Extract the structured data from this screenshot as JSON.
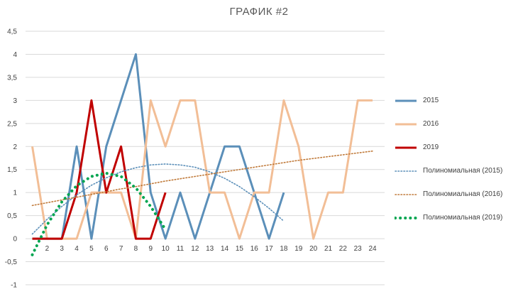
{
  "chart_data": {
    "type": "line",
    "title": "ГРАФИК #2",
    "xlabel": "",
    "ylabel": "",
    "ylim": [
      -1,
      4.5
    ],
    "ytick_step": 0.5,
    "ytick_labels": [
      "-1",
      "-0,5",
      "0",
      "0,5",
      "1",
      "1,5",
      "2",
      "2,5",
      "3",
      "3,5",
      "4",
      "4,5"
    ],
    "categories": [
      "1",
      "2",
      "3",
      "4",
      "5",
      "6",
      "7",
      "8",
      "9",
      "10",
      "11",
      "12",
      "13",
      "14",
      "15",
      "16",
      "17",
      "18",
      "19",
      "20",
      "21",
      "22",
      "23",
      "24"
    ],
    "xtick_labels": [
      "2",
      "3",
      "4",
      "5",
      "6",
      "7",
      "8",
      "9",
      "10",
      "11",
      "12",
      "13",
      "14",
      "15",
      "16",
      "17",
      "18",
      "19",
      "20",
      "21",
      "22",
      "23",
      "24"
    ],
    "grid": true,
    "legend_position": "right",
    "series": [
      {
        "name": "2015",
        "color": "#5b8fb9",
        "style": "solid",
        "x": [
          1,
          2,
          3,
          4,
          5,
          6,
          7,
          8,
          9,
          10,
          11,
          12,
          13,
          14,
          15,
          16,
          17,
          18
        ],
        "values": [
          0,
          0,
          0,
          2,
          0,
          2,
          3,
          4,
          1,
          0,
          1,
          0,
          1,
          2,
          2,
          1,
          0,
          1
        ]
      },
      {
        "name": "2016",
        "color": "#f2be96",
        "style": "solid",
        "x": [
          1,
          2,
          3,
          4,
          5,
          6,
          7,
          8,
          9,
          10,
          11,
          12,
          13,
          14,
          15,
          16,
          17,
          18,
          19,
          20,
          21,
          22,
          23,
          24
        ],
        "values": [
          2,
          0,
          0,
          0,
          1,
          1,
          1,
          0,
          3,
          2,
          3,
          3,
          1,
          1,
          0,
          1,
          1,
          3,
          2,
          0,
          1,
          1,
          3,
          3
        ]
      },
      {
        "name": "2019",
        "color": "#c00000",
        "style": "solid",
        "x": [
          1,
          2,
          3,
          4,
          5,
          6,
          7,
          8,
          9,
          10
        ],
        "values": [
          0,
          0,
          0,
          1,
          3,
          1,
          2,
          0,
          0,
          1
        ]
      },
      {
        "name": "Полиномиальная  (2015)",
        "color": "#5b8fb9",
        "style": "dotted",
        "x": [
          1,
          2,
          3,
          4,
          5,
          6,
          7,
          8,
          9,
          10,
          11,
          12,
          13,
          14,
          15,
          16,
          17,
          18
        ],
        "values": [
          0.1,
          0.42,
          0.7,
          0.95,
          1.16,
          1.32,
          1.45,
          1.54,
          1.6,
          1.62,
          1.6,
          1.55,
          1.45,
          1.31,
          1.13,
          0.91,
          0.66,
          0.38
        ]
      },
      {
        "name": "Полиномиальная  (2016)",
        "color": "#c07a3a",
        "style": "dotted",
        "x": [
          1,
          2,
          3,
          4,
          5,
          6,
          7,
          8,
          9,
          10,
          11,
          12,
          13,
          14,
          15,
          16,
          17,
          18,
          19,
          20,
          21,
          22,
          23,
          24
        ],
        "values": [
          0.72,
          0.78,
          0.84,
          0.9,
          0.96,
          1.02,
          1.08,
          1.13,
          1.19,
          1.25,
          1.3,
          1.35,
          1.4,
          1.45,
          1.5,
          1.55,
          1.6,
          1.65,
          1.7,
          1.74,
          1.78,
          1.82,
          1.86,
          1.9
        ]
      },
      {
        "name": "Полиномиальная  (2019)",
        "color": "#00a550",
        "style": "bigdots",
        "x": [
          1,
          2,
          3,
          4,
          5,
          6,
          7,
          8,
          9,
          10
        ],
        "values": [
          -0.35,
          0.3,
          0.8,
          1.15,
          1.35,
          1.42,
          1.35,
          1.1,
          0.7,
          0.2
        ]
      }
    ]
  }
}
